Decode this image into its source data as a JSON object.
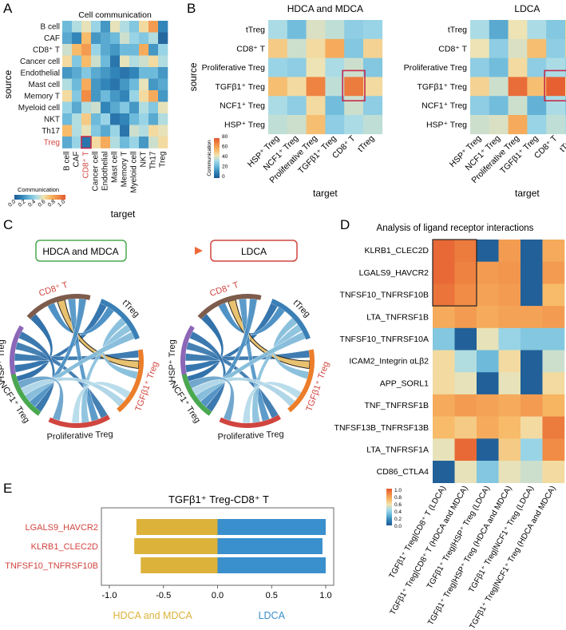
{
  "colors": {
    "scale": [
      "#1f5a94",
      "#2f82b6",
      "#67b6d9",
      "#a6dbe9",
      "#f2e3b0",
      "#f7b662",
      "#f08a45",
      "#e4572e"
    ],
    "sel_box": "#c62b4b",
    "hdca": "#dcb23b",
    "ldca": "#3a8fcd",
    "green": "#4aa84f",
    "red_text": "#d1453f",
    "purple": "#8c67b7",
    "brown": "#7e5c4c"
  },
  "panels": {
    "a": "A",
    "b": "B",
    "c": "C",
    "d": "D",
    "e": "E"
  },
  "chart_data": [
    {
      "id": "A",
      "type": "heatmap",
      "title": "Cell communication",
      "xlabel": "target",
      "ylabel": "source",
      "labels": [
        "B cell",
        "CAF",
        "CD8⁺ T",
        "Cancer cell",
        "Endothelial",
        "Mast cell",
        "Memory T",
        "Myeloid cell",
        "NKT",
        "Th17",
        "Treg"
      ],
      "highlight_labels": [
        "CD8⁺ T",
        "Treg"
      ],
      "highlight_cell": [
        10,
        2
      ],
      "legend": {
        "title": "Communication",
        "ticks": [
          "0.0",
          "0.2",
          "0.4",
          "0.6",
          "0.8",
          "1.0"
        ]
      },
      "values": [
        [
          0.3,
          0.45,
          0.55,
          0.4,
          0.2,
          0.55,
          0.45,
          0.35,
          0.6,
          0.8,
          0.15
        ],
        [
          0.25,
          0.15,
          0.7,
          0.2,
          0.25,
          0.3,
          0.5,
          0.4,
          0.35,
          0.45,
          0.05
        ],
        [
          0.5,
          0.7,
          0.8,
          0.4,
          0.25,
          0.2,
          0.3,
          0.3,
          0.75,
          0.2,
          0.4
        ],
        [
          0.6,
          0.35,
          0.7,
          0.5,
          0.3,
          0.1,
          0.55,
          0.45,
          0.5,
          0.6,
          0.45
        ],
        [
          0.2,
          0.25,
          0.35,
          0.25,
          0.2,
          0.15,
          0.1,
          0.15,
          0.3,
          0.3,
          0.2
        ],
        [
          0.45,
          0.3,
          0.75,
          0.2,
          0.15,
          0.1,
          0.2,
          0.3,
          0.55,
          0.2,
          0.25
        ],
        [
          0.6,
          0.35,
          0.85,
          0.2,
          0.3,
          0.2,
          0.15,
          0.4,
          0.6,
          0.75,
          0.2
        ],
        [
          0.4,
          0.25,
          0.45,
          0.5,
          0.15,
          0.25,
          0.35,
          0.2,
          0.45,
          0.35,
          0.55
        ],
        [
          0.3,
          0.45,
          0.65,
          0.3,
          0.4,
          0.1,
          0.15,
          0.3,
          0.4,
          0.25,
          0.45
        ],
        [
          0.7,
          0.45,
          0.55,
          0.35,
          0.25,
          0.4,
          0.1,
          0.5,
          0.45,
          0.6,
          0.55
        ],
        [
          0.25,
          0.4,
          0.1,
          0.6,
          0.75,
          0.45,
          0.3,
          0.4,
          0.2,
          0.5,
          0.6
        ]
      ]
    },
    {
      "id": "B1",
      "type": "heatmap",
      "title": "HDCA and MDCA",
      "xlabel": "target",
      "ylabel": "source",
      "rows": [
        "tTreg",
        "CD8⁺ T",
        "Proliferative Treg",
        "TGFβ1⁺ Treg",
        "NCF1⁺ Treg",
        "HSP⁺ Treg"
      ],
      "cols": [
        "HSP⁺ Treg",
        "NCF1⁺ Treg",
        "Proliferative Treg",
        "TGFβ1⁺ Treg",
        "CD8⁺ T",
        "tTreg"
      ],
      "highlight_cell": [
        3,
        4
      ],
      "legend": {
        "title": "Communication",
        "ticks": [
          "0",
          "20",
          "40",
          "60",
          "80"
        ]
      },
      "values": [
        [
          35,
          25,
          42,
          38,
          30,
          32
        ],
        [
          52,
          40,
          48,
          60,
          28,
          50
        ],
        [
          32,
          30,
          45,
          35,
          40,
          28
        ],
        [
          55,
          48,
          70,
          38,
          72,
          48
        ],
        [
          35,
          30,
          48,
          25,
          40,
          30
        ],
        [
          38,
          40,
          55,
          30,
          35,
          38
        ]
      ]
    },
    {
      "id": "B2",
      "type": "heatmap",
      "title": "LDCA",
      "xlabel": "target",
      "ylabel": "",
      "rows": [
        "tTreg",
        "CD8⁺ T",
        "Proliferative Treg",
        "TGFβ1⁺ Treg",
        "NCF1⁺ Treg",
        "HSP⁺ Treg"
      ],
      "cols": [
        "HSP⁺ Treg",
        "NCF1⁺ Treg",
        "Proliferative Treg",
        "TGFβ1⁺ Treg",
        "CD8⁺ T",
        "tTreg"
      ],
      "highlight_cell": [
        3,
        4
      ],
      "legend": null,
      "values": [
        [
          35,
          20,
          45,
          35,
          28,
          50
        ],
        [
          45,
          30,
          42,
          55,
          30,
          50
        ],
        [
          30,
          25,
          48,
          30,
          35,
          30
        ],
        [
          50,
          40,
          75,
          55,
          78,
          48
        ],
        [
          30,
          25,
          40,
          22,
          35,
          28
        ],
        [
          40,
          42,
          60,
          32,
          38,
          35
        ]
      ]
    },
    {
      "id": "C",
      "type": "chord",
      "arrow_from": "HDCA and MDCA",
      "arrow_to": "LDCA",
      "sectors": [
        "HSP⁺ Treg",
        "CD8⁺ T",
        "tTreg",
        "TGFβ1⁺ Treg",
        "Proliferative Treg",
        "NCF1⁺ Treg"
      ],
      "highlight_sectors": [
        "CD8⁺ T",
        "TGFβ1⁺ Treg"
      ],
      "highlight_link": [
        "TGFβ1⁺ Treg",
        "CD8⁺ T"
      ]
    },
    {
      "id": "D",
      "type": "heatmap",
      "title": "Analysis of ligand receptor interactions",
      "rows": [
        "KLRB1_CLEC2D",
        "LGALS9_HAVCR2",
        "TNFSF10_TNFRSF10B",
        "LTA_TNFRSF1B",
        "TNFSF10_TNFRSF10A",
        "ICAM2_Integrin αLβ2",
        "APP_SORL1",
        "TNF_TNFRSF1B",
        "TNFSF13B_TNFRSF13B",
        "LTA_TNFRSF1A",
        "CD86_CTLA4"
      ],
      "cols": [
        "TGFβ1⁺ Treg|CD8⁺ T (LDCA)",
        "TGFβ1⁺ Treg|CD8⁺ T (HDCA and MDCA)",
        "TGFβ1⁺ Treg|HSP⁺ Treg (LDCA)",
        "TGFβ1⁺ Treg|HSP⁺ Treg (HDCA and MDCA)",
        "TGFβ1⁺ Treg|NCF1⁺ Treg (LDCA)",
        "TGFβ1⁺ Treg|NCF1⁺ Treg (HDCA and MDCA)"
      ],
      "highlight_rows": [
        0,
        2
      ],
      "highlight_cols": [
        0,
        1
      ],
      "legend": {
        "ticks": [
          "1.0",
          "0.8",
          "0.6",
          "0.4",
          "0.2",
          "0.0"
        ]
      },
      "values": [
        [
          0.95,
          0.9,
          0.02,
          0.8,
          0.02,
          0.75
        ],
        [
          0.95,
          0.88,
          0.8,
          0.82,
          0.02,
          0.8
        ],
        [
          0.92,
          0.85,
          0.78,
          0.8,
          0.02,
          0.7
        ],
        [
          0.75,
          0.8,
          0.75,
          0.78,
          0.78,
          0.8
        ],
        [
          0.35,
          0.02,
          0.55,
          0.4,
          0.35,
          0.35
        ],
        [
          0.6,
          0.45,
          0.3,
          0.6,
          0.02,
          0.5
        ],
        [
          0.6,
          0.55,
          0.02,
          0.55,
          0.02,
          0.6
        ],
        [
          0.75,
          0.8,
          0.78,
          0.75,
          0.8,
          0.72
        ],
        [
          0.7,
          0.65,
          0.75,
          0.7,
          0.6,
          0.9
        ],
        [
          0.55,
          0.95,
          0.02,
          0.65,
          0.4,
          0.85
        ],
        [
          0.02,
          0.55,
          0.35,
          0.55,
          0.5,
          0.6
        ]
      ]
    },
    {
      "id": "E",
      "type": "bar",
      "title": "TGFβ1⁺ Treg-CD8⁺ T",
      "categories": [
        "LGALS9_HAVCR2",
        "KLRB1_CLEC2D",
        "TNFSF10_TNFRSF10B"
      ],
      "series": [
        {
          "name": "HDCA and MDCA",
          "values": [
            -0.75,
            -0.77,
            -0.71
          ]
        },
        {
          "name": "LDCA",
          "values": [
            1.0,
            0.97,
            1.0
          ]
        }
      ],
      "xlim": [
        -1.0,
        1.0
      ],
      "xticks": [
        "-1.0",
        "-0.5",
        "0.0",
        "0.5",
        "1.0"
      ],
      "xtick_values": [
        -1.0,
        -0.5,
        0.0,
        0.5,
        1.0
      ]
    }
  ]
}
